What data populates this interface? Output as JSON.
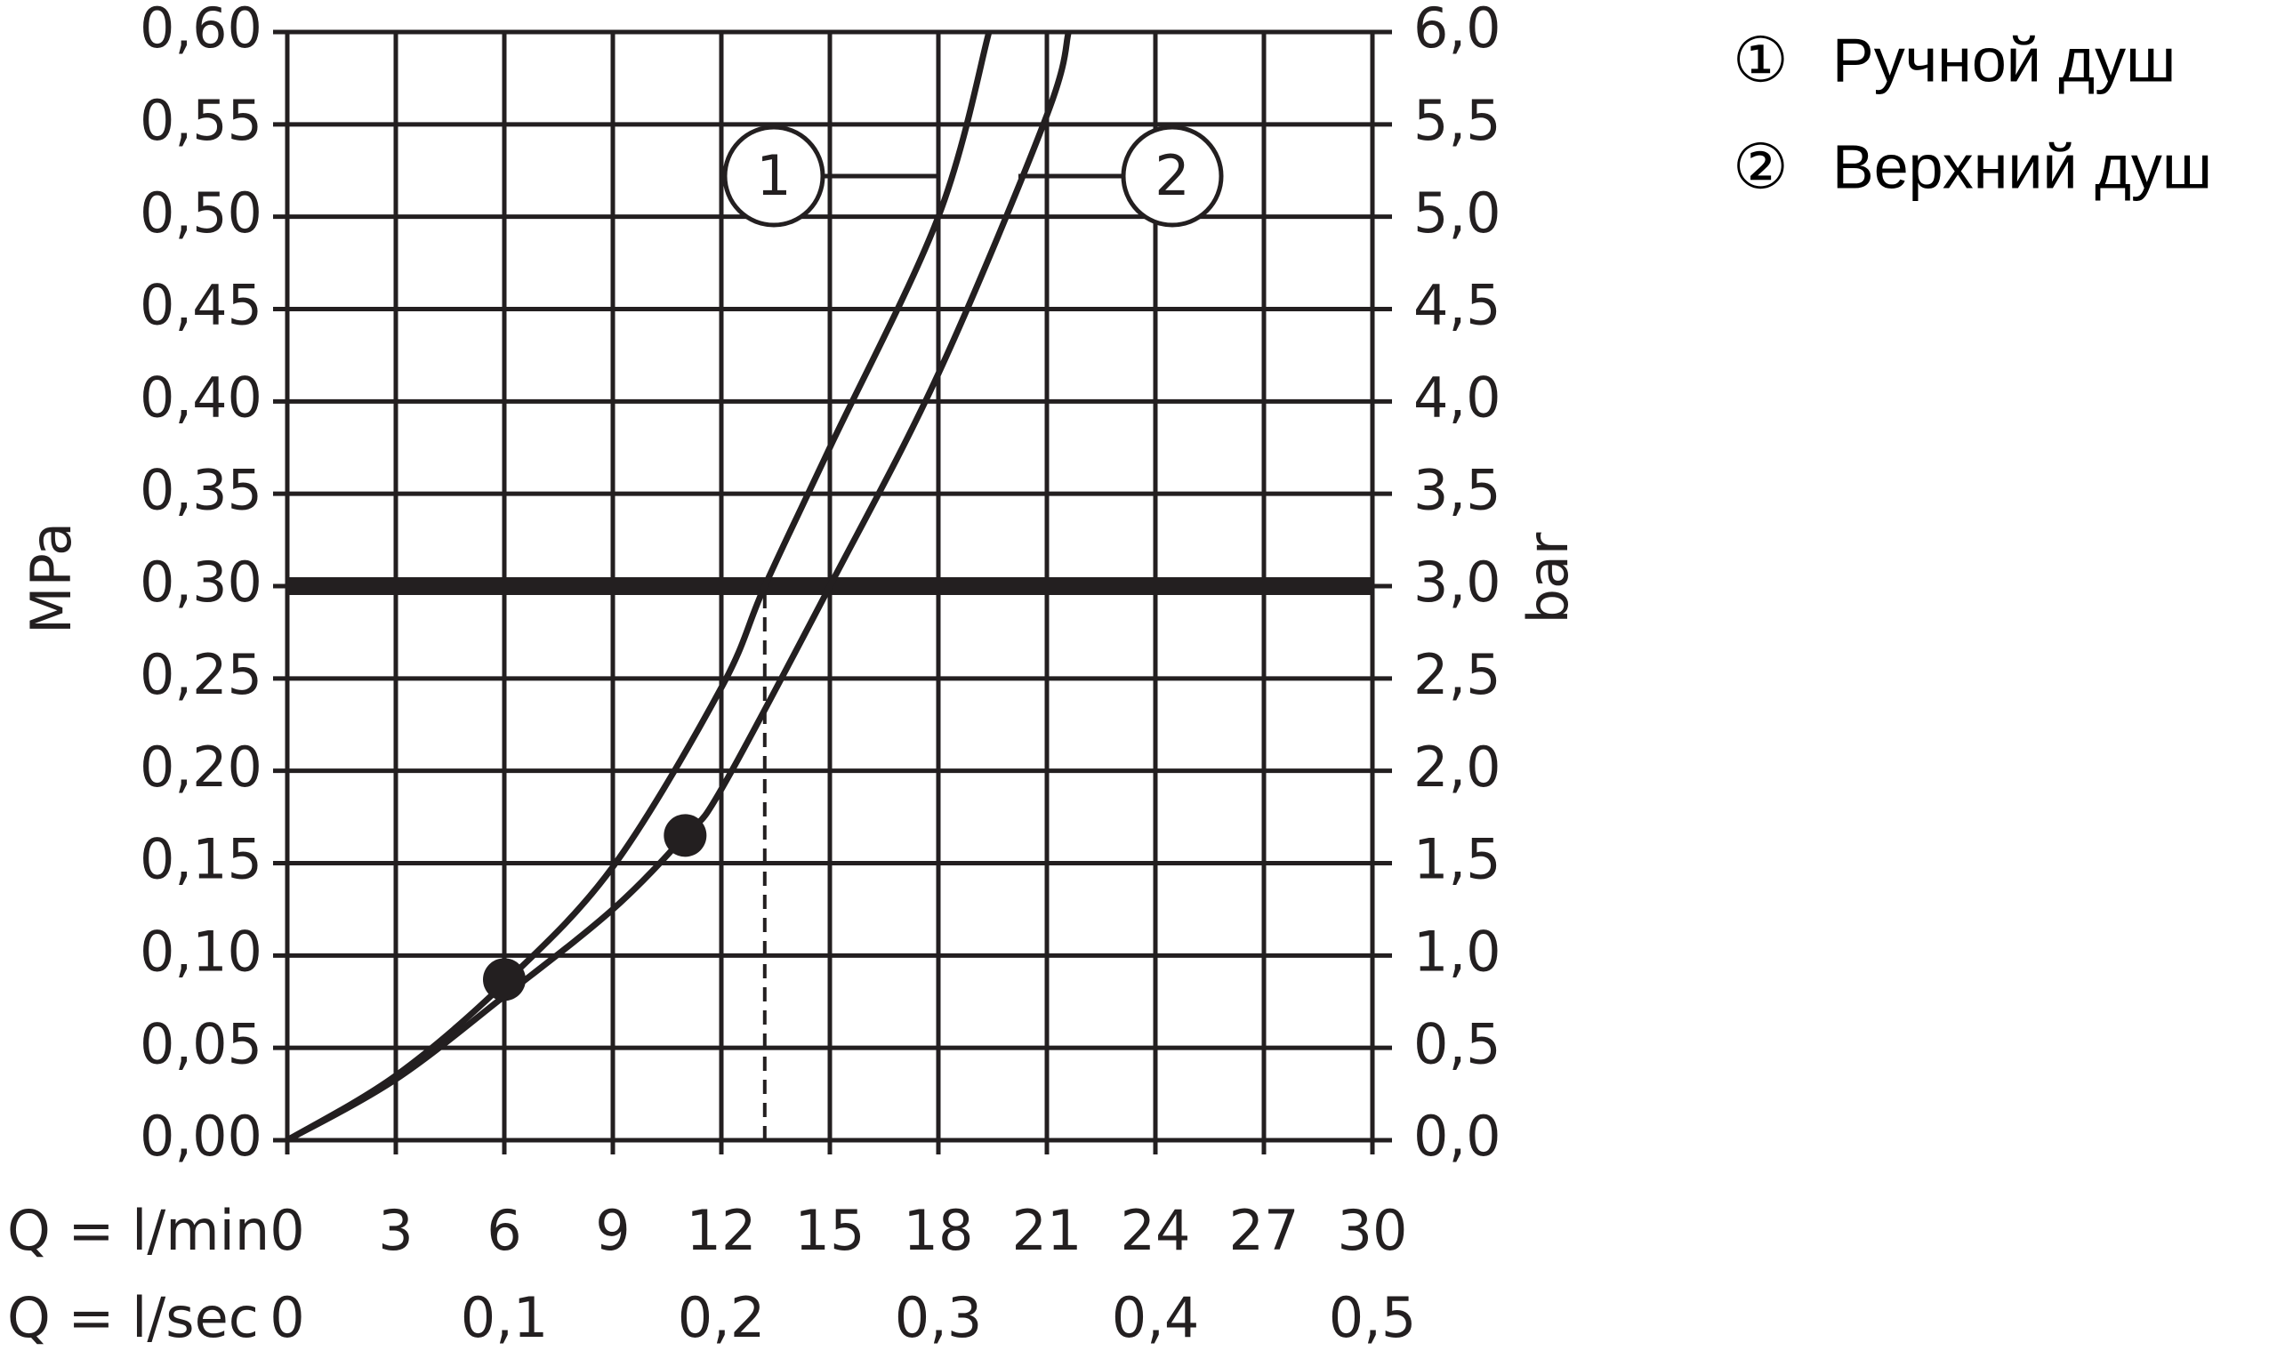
{
  "chart_data": {
    "type": "line",
    "y_label": "MPa",
    "y2_label": "bar",
    "x_label": "Q = l/min",
    "x2_label": "Q = l/sec",
    "xlim": [
      0,
      30
    ],
    "xticks": [
      0,
      3,
      6,
      9,
      12,
      15,
      18,
      21,
      24,
      27,
      30
    ],
    "x2lim": [
      0,
      0.5
    ],
    "x2ticks": [
      0,
      {
        "value": 0.1,
        "label": "0,1"
      },
      {
        "value": 0.2,
        "label": "0,2"
      },
      {
        "value": 0.3,
        "label": "0,3"
      },
      {
        "value": 0.4,
        "label": "0,4"
      },
      {
        "value": 0.5,
        "label": "0,5"
      }
    ],
    "ylim": [
      0,
      0.6
    ],
    "yticks": [
      {
        "value": 0,
        "label": "0,00"
      },
      {
        "value": 0.05,
        "label": "0,05"
      },
      {
        "value": 0.1,
        "label": "0,10"
      },
      {
        "value": 0.15,
        "label": "0,15"
      },
      {
        "value": 0.2,
        "label": "0,20"
      },
      {
        "value": 0.25,
        "label": "0,25"
      },
      {
        "value": 0.3,
        "label": "0,30"
      },
      {
        "value": 0.35,
        "label": "0,35"
      },
      {
        "value": 0.4,
        "label": "0,40"
      },
      {
        "value": 0.45,
        "label": "0,45"
      },
      {
        "value": 0.5,
        "label": "0,50"
      },
      {
        "value": 0.55,
        "label": "0,55"
      },
      {
        "value": 0.6,
        "label": "0,60"
      }
    ],
    "y2lim": [
      0,
      6
    ],
    "y2ticks": [
      {
        "value": 0,
        "label": "0,0"
      },
      {
        "value": 0.5,
        "label": "0,5"
      },
      {
        "value": 1,
        "label": "1,0"
      },
      {
        "value": 1.5,
        "label": "1,5"
      },
      {
        "value": 2,
        "label": "2,0"
      },
      {
        "value": 2.5,
        "label": "2,5"
      },
      {
        "value": 3,
        "label": "3,0"
      },
      {
        "value": 3.5,
        "label": "3,5"
      },
      {
        "value": 4,
        "label": "4,0"
      },
      {
        "value": 4.5,
        "label": "4,5"
      },
      {
        "value": 5,
        "label": "5,0"
      },
      {
        "value": 5.5,
        "label": "5,5"
      },
      {
        "value": 6,
        "label": "6,0"
      }
    ],
    "grid": true,
    "hline": 0.3,
    "dashed_x": [
      13.2,
      15
    ],
    "markers": {
      "x": [
        6,
        11
      ],
      "values": [
        0.087,
        0.165
      ]
    },
    "series": [
      {
        "name": "Ручной душ",
        "label": "1",
        "legend_marker": "①",
        "color": "#231f20",
        "x": [
          0,
          3,
          6,
          9,
          12,
          13.2,
          15,
          18,
          19.4
        ],
        "values": [
          0,
          0.035,
          0.085,
          0.148,
          0.245,
          0.3,
          0.375,
          0.5,
          0.6
        ]
      },
      {
        "name": "Верхний душ",
        "label": "2",
        "legend_marker": "②",
        "color": "#231f20",
        "x": [
          0,
          3,
          6,
          9,
          11,
          12,
          15,
          18,
          21,
          21.6
        ],
        "values": [
          0,
          0.033,
          0.078,
          0.125,
          0.165,
          0.19,
          0.3,
          0.415,
          0.555,
          0.6
        ]
      }
    ]
  }
}
